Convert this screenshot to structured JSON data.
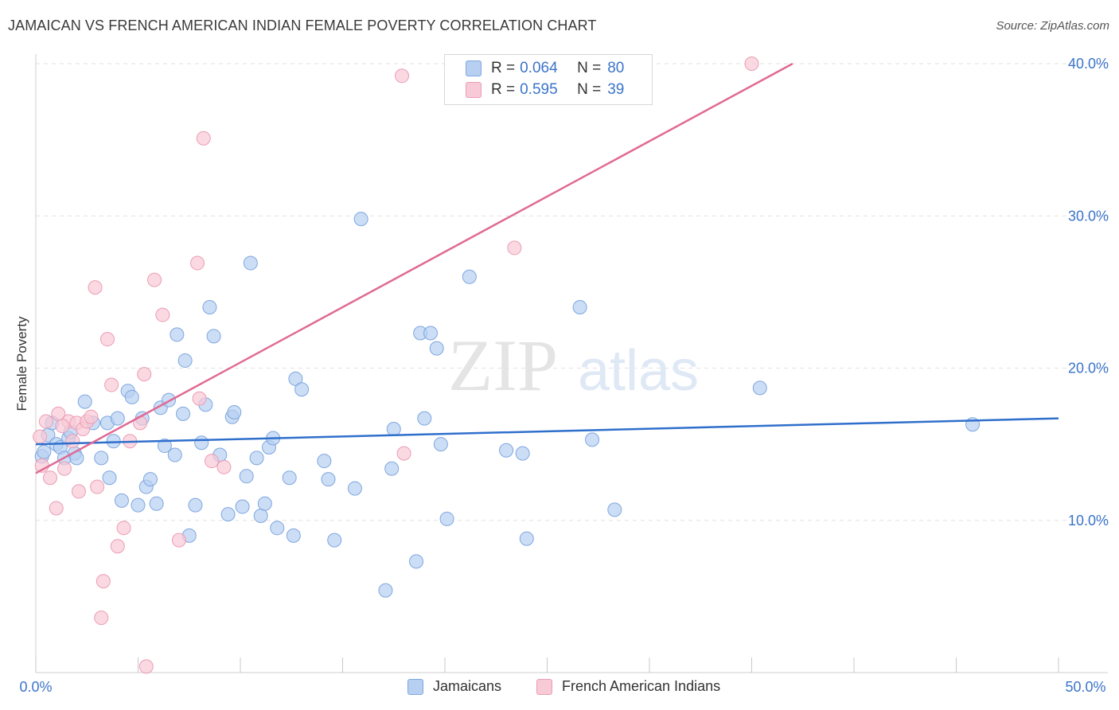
{
  "header": {
    "title": "JAMAICAN VS FRENCH AMERICAN INDIAN FEMALE POVERTY CORRELATION CHART",
    "source": "Source: ZipAtlas.com"
  },
  "watermark": {
    "zip": "ZIP",
    "atlas": "atlas"
  },
  "legend_top": [
    {
      "r_label": "R =",
      "r_value": "0.064",
      "n_label": "N =",
      "n_value": "80"
    },
    {
      "r_label": "R =",
      "r_value": "0.595",
      "n_label": "N =",
      "n_value": "39"
    }
  ],
  "legend_bottom": [
    {
      "label": "Jamaicans"
    },
    {
      "label": "French American Indians"
    }
  ],
  "colors": {
    "blue_fill": "#b7d0f2",
    "blue_stroke": "#7fa6df",
    "blue_line": "#2f6fcc",
    "pink_fill": "#f8c9d6",
    "pink_stroke": "#eb9db4",
    "pink_line": "#e06a94",
    "tick_label": "#3b74c9",
    "grid": "#e2e2e2"
  },
  "chart_data": {
    "type": "scatter",
    "title": "JAMAICAN VS FRENCH AMERICAN INDIAN FEMALE POVERTY CORRELATION CHART",
    "xlabel": "",
    "ylabel": "Female Poverty",
    "xlim": [
      0,
      50
    ],
    "ylim": [
      0,
      40.8
    ],
    "x_tick_labels": [
      "0.0%",
      "50.0%"
    ],
    "y_ticks": [
      10,
      20,
      30,
      40
    ],
    "y_tick_labels": [
      "10.0%",
      "20.0%",
      "30.0%",
      "40.0%"
    ],
    "grid": true,
    "legend_position": "top-center",
    "series": [
      {
        "name": "Jamaicans",
        "color": "#b7d0f2",
        "r": 0.064,
        "n": 80,
        "trend": {
          "x": [
            0,
            50
          ],
          "y": [
            15.0,
            16.7
          ]
        },
        "points": [
          [
            0.3,
            14.2
          ],
          [
            0.4,
            14.5
          ],
          [
            0.6,
            15.6
          ],
          [
            0.8,
            16.4
          ],
          [
            1.0,
            15.0
          ],
          [
            1.2,
            14.8
          ],
          [
            1.4,
            14.1
          ],
          [
            1.6,
            15.4
          ],
          [
            1.7,
            15.8
          ],
          [
            1.9,
            14.4
          ],
          [
            2.0,
            14.1
          ],
          [
            2.4,
            17.8
          ],
          [
            2.8,
            16.4
          ],
          [
            3.2,
            14.1
          ],
          [
            3.5,
            16.4
          ],
          [
            3.6,
            12.8
          ],
          [
            3.8,
            15.2
          ],
          [
            4.0,
            16.7
          ],
          [
            4.2,
            11.3
          ],
          [
            4.5,
            18.5
          ],
          [
            4.7,
            18.1
          ],
          [
            5.0,
            11.0
          ],
          [
            5.2,
            16.7
          ],
          [
            5.4,
            12.2
          ],
          [
            5.6,
            12.7
          ],
          [
            5.9,
            11.1
          ],
          [
            6.1,
            17.4
          ],
          [
            6.3,
            14.9
          ],
          [
            6.5,
            17.9
          ],
          [
            6.8,
            14.3
          ],
          [
            6.9,
            22.2
          ],
          [
            7.2,
            17.0
          ],
          [
            7.3,
            20.5
          ],
          [
            7.5,
            9.0
          ],
          [
            7.8,
            11.0
          ],
          [
            8.1,
            15.1
          ],
          [
            8.3,
            17.6
          ],
          [
            8.5,
            24.0
          ],
          [
            8.7,
            22.1
          ],
          [
            9.0,
            14.3
          ],
          [
            9.4,
            10.4
          ],
          [
            9.6,
            16.8
          ],
          [
            9.7,
            17.1
          ],
          [
            10.1,
            10.9
          ],
          [
            10.3,
            12.9
          ],
          [
            10.5,
            26.9
          ],
          [
            10.8,
            14.1
          ],
          [
            11.0,
            10.3
          ],
          [
            11.2,
            11.1
          ],
          [
            11.4,
            14.8
          ],
          [
            11.6,
            15.4
          ],
          [
            11.8,
            9.5
          ],
          [
            12.4,
            12.8
          ],
          [
            12.7,
            19.3
          ],
          [
            12.6,
            9.0
          ],
          [
            13.0,
            18.6
          ],
          [
            14.1,
            13.9
          ],
          [
            14.3,
            12.7
          ],
          [
            14.6,
            8.7
          ],
          [
            15.6,
            12.1
          ],
          [
            15.9,
            29.8
          ],
          [
            17.1,
            5.4
          ],
          [
            17.4,
            13.4
          ],
          [
            17.5,
            16.0
          ],
          [
            18.6,
            7.3
          ],
          [
            18.8,
            22.3
          ],
          [
            19.0,
            16.7
          ],
          [
            19.3,
            22.3
          ],
          [
            19.6,
            21.3
          ],
          [
            19.8,
            15.0
          ],
          [
            20.1,
            10.1
          ],
          [
            21.2,
            26.0
          ],
          [
            23.0,
            14.6
          ],
          [
            23.8,
            14.4
          ],
          [
            24.0,
            8.8
          ],
          [
            26.6,
            24.0
          ],
          [
            27.2,
            15.3
          ],
          [
            28.3,
            10.7
          ],
          [
            35.4,
            18.7
          ],
          [
            45.8,
            16.3
          ]
        ]
      },
      {
        "name": "French American Indians",
        "color": "#f8c9d6",
        "r": 0.595,
        "n": 39,
        "trend": {
          "x": [
            0,
            37.0
          ],
          "y": [
            13.1,
            40.0
          ]
        },
        "points": [
          [
            0.2,
            15.5
          ],
          [
            0.3,
            13.6
          ],
          [
            0.5,
            16.5
          ],
          [
            0.7,
            12.8
          ],
          [
            1.0,
            10.8
          ],
          [
            1.1,
            17.0
          ],
          [
            1.4,
            13.4
          ],
          [
            1.6,
            16.5
          ],
          [
            1.8,
            15.2
          ],
          [
            2.0,
            16.4
          ],
          [
            2.1,
            11.9
          ],
          [
            2.3,
            16.0
          ],
          [
            2.5,
            16.5
          ],
          [
            2.7,
            16.8
          ],
          [
            2.9,
            25.3
          ],
          [
            3.0,
            12.2
          ],
          [
            3.2,
            3.6
          ],
          [
            3.3,
            6.0
          ],
          [
            3.5,
            21.9
          ],
          [
            3.7,
            18.9
          ],
          [
            4.0,
            8.3
          ],
          [
            4.3,
            9.5
          ],
          [
            4.6,
            15.2
          ],
          [
            5.1,
            16.4
          ],
          [
            5.3,
            19.6
          ],
          [
            5.4,
            0.4
          ],
          [
            5.8,
            25.8
          ],
          [
            6.2,
            23.5
          ],
          [
            7.0,
            8.7
          ],
          [
            7.9,
            26.9
          ],
          [
            8.0,
            18.0
          ],
          [
            8.2,
            35.1
          ],
          [
            8.6,
            13.9
          ],
          [
            9.2,
            13.5
          ],
          [
            17.9,
            39.2
          ],
          [
            18.0,
            14.4
          ],
          [
            23.4,
            27.9
          ],
          [
            35.0,
            40.0
          ],
          [
            1.3,
            16.2
          ]
        ]
      }
    ]
  }
}
